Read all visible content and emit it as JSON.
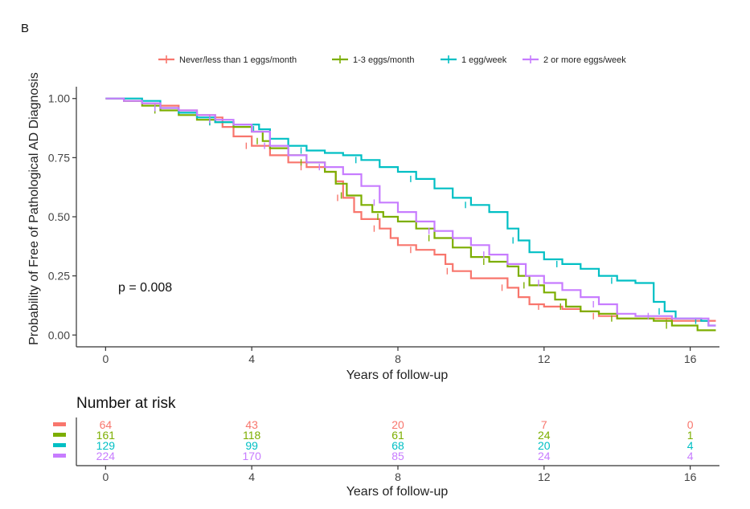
{
  "panel_label": "B",
  "chart_data": [
    {
      "type": "line",
      "subtype": "kaplan-meier",
      "title": "",
      "xlabel": "Years of follow-up",
      "ylabel": "Probability of Free of Pathological AD Diagnosis",
      "xlim": [
        -0.8,
        16.8
      ],
      "ylim": [
        -0.05,
        1.05
      ],
      "xticks": [
        0,
        4,
        8,
        12,
        16
      ],
      "yticks": [
        0.0,
        0.25,
        0.5,
        0.75,
        1.0
      ],
      "ytick_labels": [
        "0.00",
        "0.25",
        "0.50",
        "0.75",
        "1.00"
      ],
      "grid": false,
      "legend_position": "top",
      "annotation": "p = 0.008",
      "series": [
        {
          "name": "Never/less than 1 eggs/month",
          "color": "#F8766D",
          "points": [
            [
              0,
              1.0
            ],
            [
              0.5,
              0.99
            ],
            [
              1,
              0.98
            ],
            [
              1.5,
              0.97
            ],
            [
              2,
              0.95
            ],
            [
              2.5,
              0.93
            ],
            [
              3,
              0.92
            ],
            [
              3.2,
              0.88
            ],
            [
              3.5,
              0.84
            ],
            [
              4,
              0.8
            ],
            [
              4.5,
              0.76
            ],
            [
              5,
              0.73
            ],
            [
              5.5,
              0.71
            ],
            [
              6,
              0.69
            ],
            [
              6.3,
              0.65
            ],
            [
              6.5,
              0.58
            ],
            [
              6.8,
              0.52
            ],
            [
              7,
              0.49
            ],
            [
              7.5,
              0.45
            ],
            [
              7.8,
              0.41
            ],
            [
              8,
              0.38
            ],
            [
              8.5,
              0.36
            ],
            [
              9,
              0.34
            ],
            [
              9.3,
              0.3
            ],
            [
              9.5,
              0.27
            ],
            [
              10,
              0.24
            ],
            [
              10.5,
              0.24
            ],
            [
              11,
              0.2
            ],
            [
              11.3,
              0.16
            ],
            [
              11.6,
              0.13
            ],
            [
              12,
              0.12
            ],
            [
              12.5,
              0.11
            ],
            [
              13,
              0.1
            ],
            [
              13.5,
              0.08
            ],
            [
              14,
              0.07
            ],
            [
              15,
              0.07
            ],
            [
              15.5,
              0.06
            ],
            [
              16,
              0.06
            ],
            [
              16.7,
              0.06
            ]
          ]
        },
        {
          "name": "1-3 eggs/month",
          "color": "#7CAE00",
          "points": [
            [
              0,
              1.0
            ],
            [
              0.5,
              0.99
            ],
            [
              1,
              0.97
            ],
            [
              1.5,
              0.95
            ],
            [
              2,
              0.93
            ],
            [
              2.5,
              0.91
            ],
            [
              3,
              0.9
            ],
            [
              3.5,
              0.88
            ],
            [
              4,
              0.86
            ],
            [
              4.3,
              0.82
            ],
            [
              4.5,
              0.79
            ],
            [
              5,
              0.76
            ],
            [
              5.5,
              0.73
            ],
            [
              6,
              0.69
            ],
            [
              6.3,
              0.64
            ],
            [
              6.6,
              0.59
            ],
            [
              7,
              0.55
            ],
            [
              7.3,
              0.52
            ],
            [
              7.6,
              0.5
            ],
            [
              8,
              0.48
            ],
            [
              8.5,
              0.45
            ],
            [
              9,
              0.41
            ],
            [
              9.5,
              0.37
            ],
            [
              10,
              0.33
            ],
            [
              10.5,
              0.31
            ],
            [
              11,
              0.29
            ],
            [
              11.3,
              0.25
            ],
            [
              11.6,
              0.21
            ],
            [
              12,
              0.18
            ],
            [
              12.3,
              0.15
            ],
            [
              12.6,
              0.12
            ],
            [
              13,
              0.1
            ],
            [
              13.5,
              0.09
            ],
            [
              14,
              0.07
            ],
            [
              14.5,
              0.07
            ],
            [
              15,
              0.06
            ],
            [
              15.5,
              0.04
            ],
            [
              16,
              0.04
            ],
            [
              16.2,
              0.02
            ],
            [
              16.7,
              0.02
            ]
          ]
        },
        {
          "name": "1 egg/week",
          "color": "#00BFC4",
          "points": [
            [
              0,
              1.0
            ],
            [
              0.5,
              1.0
            ],
            [
              1,
              0.99
            ],
            [
              1.5,
              0.96
            ],
            [
              2,
              0.94
            ],
            [
              2.5,
              0.92
            ],
            [
              3,
              0.9
            ],
            [
              3.5,
              0.89
            ],
            [
              4,
              0.89
            ],
            [
              4.2,
              0.87
            ],
            [
              4.5,
              0.83
            ],
            [
              5,
              0.8
            ],
            [
              5.5,
              0.78
            ],
            [
              6,
              0.77
            ],
            [
              6.5,
              0.76
            ],
            [
              7,
              0.74
            ],
            [
              7.5,
              0.71
            ],
            [
              8,
              0.69
            ],
            [
              8.5,
              0.66
            ],
            [
              9,
              0.62
            ],
            [
              9.5,
              0.58
            ],
            [
              10,
              0.55
            ],
            [
              10.5,
              0.52
            ],
            [
              11,
              0.45
            ],
            [
              11.3,
              0.4
            ],
            [
              11.6,
              0.35
            ],
            [
              12,
              0.32
            ],
            [
              12.5,
              0.3
            ],
            [
              13,
              0.28
            ],
            [
              13.5,
              0.25
            ],
            [
              14,
              0.23
            ],
            [
              14.5,
              0.22
            ],
            [
              15,
              0.14
            ],
            [
              15.3,
              0.1
            ],
            [
              15.6,
              0.07
            ],
            [
              16,
              0.07
            ],
            [
              16.3,
              0.06
            ],
            [
              16.5,
              0.04
            ],
            [
              16.7,
              0.04
            ]
          ]
        },
        {
          "name": "2 or more eggs/week",
          "color": "#C77CFF",
          "points": [
            [
              0,
              1.0
            ],
            [
              0.5,
              0.99
            ],
            [
              1,
              0.98
            ],
            [
              1.5,
              0.96
            ],
            [
              2,
              0.95
            ],
            [
              2.5,
              0.93
            ],
            [
              3,
              0.91
            ],
            [
              3.5,
              0.89
            ],
            [
              4,
              0.86
            ],
            [
              4.5,
              0.8
            ],
            [
              5,
              0.76
            ],
            [
              5.5,
              0.73
            ],
            [
              6,
              0.71
            ],
            [
              6.5,
              0.68
            ],
            [
              7,
              0.63
            ],
            [
              7.5,
              0.56
            ],
            [
              8,
              0.52
            ],
            [
              8.5,
              0.48
            ],
            [
              9,
              0.44
            ],
            [
              9.5,
              0.41
            ],
            [
              10,
              0.38
            ],
            [
              10.5,
              0.34
            ],
            [
              11,
              0.3
            ],
            [
              11.5,
              0.25
            ],
            [
              12,
              0.22
            ],
            [
              12.5,
              0.19
            ],
            [
              13,
              0.16
            ],
            [
              13.5,
              0.13
            ],
            [
              14,
              0.09
            ],
            [
              14.5,
              0.08
            ],
            [
              15,
              0.08
            ],
            [
              15.5,
              0.07
            ],
            [
              16,
              0.07
            ],
            [
              16.5,
              0.04
            ],
            [
              16.7,
              0.04
            ]
          ]
        }
      ]
    },
    {
      "type": "table",
      "title": "Number at risk",
      "xlabel": "Years of follow-up",
      "columns": [
        0,
        4,
        8,
        12,
        16
      ],
      "rows": [
        {
          "name": "Never/less than 1 eggs/month",
          "color": "#F8766D",
          "values": [
            "64",
            "43",
            "20",
            "7",
            "0"
          ]
        },
        {
          "name": "1-3 eggs/month",
          "color": "#7CAE00",
          "values": [
            "161",
            "118",
            "61",
            "24",
            "1"
          ]
        },
        {
          "name": "1 egg/week",
          "color": "#00BFC4",
          "values": [
            "129",
            "99",
            "68",
            "20",
            "4"
          ]
        },
        {
          "name": "2 or more eggs/week",
          "color": "#C77CFF",
          "values": [
            "224",
            "170",
            "85",
            "24",
            "4"
          ]
        }
      ]
    }
  ]
}
